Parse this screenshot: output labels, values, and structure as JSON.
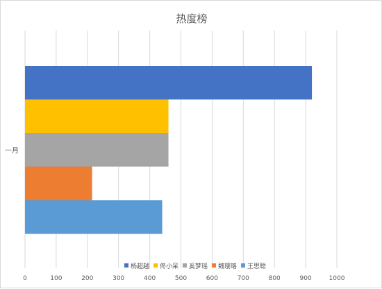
{
  "chart_data": {
    "type": "bar",
    "orientation": "horizontal",
    "title": "热度榜",
    "categories": [
      "一月"
    ],
    "series": [
      {
        "name": "杨超越",
        "values": [
          920
        ],
        "color": "#4472C4"
      },
      {
        "name": "佟小呆",
        "values": [
          460
        ],
        "color": "#FFC000"
      },
      {
        "name": "奚梦瑶",
        "values": [
          460
        ],
        "color": "#A5A5A5"
      },
      {
        "name": "魏璎珞",
        "values": [
          215
        ],
        "color": "#ED7D31"
      },
      {
        "name": "王思聪",
        "values": [
          440
        ],
        "color": "#5B9BD5"
      }
    ],
    "xlim": [
      0,
      1000
    ],
    "xticks": [
      "0",
      "100",
      "200",
      "300",
      "400",
      "500",
      "600",
      "700",
      "800",
      "900",
      "1000"
    ],
    "grid": true,
    "legend_position": "bottom",
    "gridline_color": "#d9d9d9"
  }
}
